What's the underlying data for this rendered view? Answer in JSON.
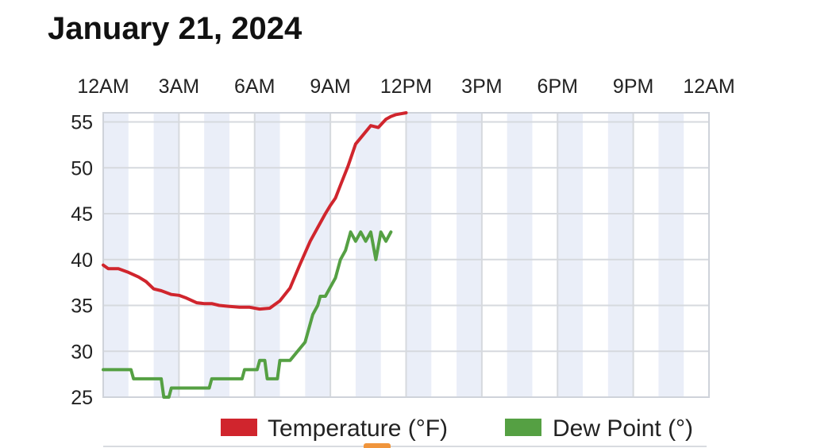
{
  "title": "January 21, 2024",
  "chart_data": {
    "type": "line",
    "x_ticks": [
      "12AM",
      "3AM",
      "6AM",
      "9AM",
      "12PM",
      "3PM",
      "6PM",
      "9PM",
      "12AM"
    ],
    "y_ticks": [
      25,
      30,
      35,
      40,
      45,
      50,
      55
    ],
    "xlim": [
      0,
      24
    ],
    "ylim": [
      25,
      56
    ],
    "grid": true,
    "legend": "bottom",
    "series": [
      {
        "name": "Temperature (°F)",
        "color": "#d0252d",
        "x": [
          0,
          0.2,
          0.6,
          1.0,
          1.4,
          1.7,
          2.0,
          2.3,
          2.7,
          3.0,
          3.3,
          3.7,
          4.0,
          4.3,
          4.6,
          5.0,
          5.4,
          5.8,
          6.2,
          6.6,
          7.0,
          7.4,
          7.8,
          8.2,
          8.5,
          8.8,
          9.0,
          9.2,
          9.4,
          9.7,
          10.0,
          10.3,
          10.6,
          10.9,
          11.2,
          11.4,
          11.6,
          11.8,
          12.0
        ],
        "y": [
          39.4,
          39.0,
          39.0,
          38.6,
          38.1,
          37.6,
          36.8,
          36.6,
          36.2,
          36.1,
          35.8,
          35.3,
          35.2,
          35.2,
          35.0,
          34.9,
          34.8,
          34.8,
          34.6,
          34.7,
          35.5,
          36.9,
          39.5,
          42.0,
          43.5,
          45.0,
          45.9,
          46.7,
          48.1,
          50.2,
          52.6,
          53.6,
          54.6,
          54.4,
          55.3,
          55.6,
          55.8,
          55.9,
          56.0
        ]
      },
      {
        "name": "Dew Point (°)",
        "color": "#55a043",
        "x": [
          0,
          1.1,
          1.2,
          2.3,
          2.4,
          2.6,
          2.7,
          4.2,
          4.3,
          5.5,
          5.6,
          6.1,
          6.2,
          6.4,
          6.5,
          6.9,
          7.0,
          7.3,
          7.4,
          8.0,
          8.1,
          8.3,
          8.5,
          8.6,
          8.8,
          9.0,
          9.2,
          9.4,
          9.6,
          9.8,
          10.0,
          10.2,
          10.4,
          10.6,
          10.8,
          11.0,
          11.2,
          11.4
        ],
        "y": [
          28,
          28,
          27,
          27,
          25,
          25,
          26,
          26,
          27,
          27,
          28,
          28,
          29,
          29,
          27,
          27,
          29,
          29,
          29,
          31,
          32,
          34,
          35,
          36,
          36,
          37,
          38,
          40,
          41,
          43,
          42,
          43,
          42,
          43,
          40,
          43,
          42,
          43
        ]
      }
    ]
  }
}
